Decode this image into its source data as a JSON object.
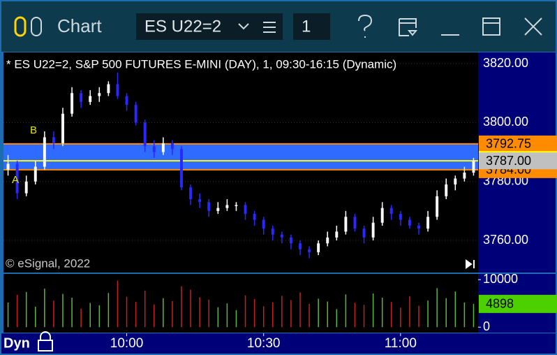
{
  "window": {
    "title": "Chart",
    "symbol": "ES U22=2",
    "interval": "1",
    "footer": "Dyn"
  },
  "chart_data": {
    "type": "candlestick",
    "title": "* ES U22=2, S&P 500 FUTURES E-MINI (DAY), 1, 09:30-16:15 (Dynamic)",
    "copyright": "© eSignal, 2022",
    "annotations": [
      "A",
      "B"
    ],
    "x": [
      574,
      576,
      578,
      580,
      582,
      584,
      586,
      588,
      590,
      592,
      594,
      596,
      598,
      600,
      602,
      604,
      606,
      608,
      610,
      612,
      614,
      616,
      618,
      620,
      622,
      624,
      626,
      628,
      630,
      632,
      634,
      636,
      638,
      640,
      642,
      644,
      646,
      648,
      650,
      652,
      654,
      656,
      658,
      660,
      662,
      664,
      666,
      668,
      670,
      672,
      674,
      676
    ],
    "open": [
      3784,
      3786,
      3776,
      3780,
      3785,
      3795,
      3793,
      3803,
      3810,
      3807,
      3809,
      3810,
      3813,
      3809,
      3806,
      3800,
      3792,
      3790,
      3793,
      3791,
      3778,
      3774,
      3773,
      3770,
      3771,
      3772,
      3772,
      3769,
      3767,
      3764,
      3762,
      3761,
      3759,
      3757,
      3756,
      3759,
      3761,
      3763,
      3768,
      3764,
      3761,
      3766,
      3771,
      3769,
      3767,
      3765,
      3764,
      3768,
      3775,
      3779,
      3781,
      3783
    ],
    "high": [
      3789,
      3787,
      3782,
      3787,
      3797,
      3797,
      3805,
      3812,
      3811,
      3811,
      3812,
      3814,
      3817,
      3810,
      3807,
      3801,
      3794,
      3795,
      3794,
      3792,
      3779,
      3776,
      3774,
      3773,
      3774,
      3773,
      3773,
      3770,
      3768,
      3765,
      3763,
      3762,
      3760,
      3758,
      3760,
      3763,
      3765,
      3770,
      3769,
      3765,
      3768,
      3773,
      3772,
      3770,
      3768,
      3766,
      3770,
      3777,
      3781,
      3782,
      3785,
      3788
    ],
    "low": [
      3782,
      3774,
      3775,
      3779,
      3784,
      3791,
      3792,
      3802,
      3805,
      3806,
      3807,
      3809,
      3808,
      3804,
      3799,
      3790,
      3788,
      3789,
      3789,
      3777,
      3772,
      3771,
      3768,
      3769,
      3770,
      3770,
      3767,
      3765,
      3762,
      3760,
      3759,
      3757,
      3755,
      3754,
      3755,
      3758,
      3760,
      3762,
      3763,
      3759,
      3760,
      3765,
      3767,
      3765,
      3764,
      3762,
      3763,
      3767,
      3774,
      3777,
      3780,
      3782
    ],
    "close": [
      3786,
      3776,
      3780,
      3785,
      3795,
      3793,
      3803,
      3810,
      3807,
      3809,
      3810,
      3813,
      3809,
      3806,
      3800,
      3792,
      3790,
      3793,
      3791,
      3778,
      3774,
      3773,
      3770,
      3771,
      3772,
      3772,
      3769,
      3767,
      3764,
      3762,
      3761,
      3759,
      3757,
      3756,
      3759,
      3761,
      3763,
      3768,
      3764,
      3761,
      3766,
      3771,
      3769,
      3767,
      3765,
      3764,
      3768,
      3775,
      3779,
      3781,
      3783,
      3787
    ],
    "up_color": "#ffffff",
    "down_color": "#2828ff",
    "xlim": [
      573,
      677
    ],
    "xticks": [
      {
        "value": 600,
        "label": "10:00"
      },
      {
        "value": 630,
        "label": "10:30"
      },
      {
        "value": 660,
        "label": "11:00"
      }
    ],
    "ylim": [
      3749.1,
      3823.8
    ],
    "yticks": [
      {
        "value": 3820,
        "label": "3820.00"
      },
      {
        "value": 3800,
        "label": "3800.00"
      },
      {
        "value": 3780,
        "label": "3780.00"
      },
      {
        "value": 3760,
        "label": "3760.00"
      }
    ],
    "grid": true,
    "band": {
      "color": "#2f6bff",
      "levels": [
        {
          "value": 3792.75,
          "label": "3792.75"
        },
        {
          "value": 3784,
          "label": "3784.00"
        }
      ],
      "level_color": "#ff8c00"
    },
    "last": {
      "value": 3787,
      "label": "3787.00",
      "color": "#ffff00"
    },
    "volume": {
      "values": [
        5200,
        6800,
        7400,
        4300,
        8100,
        5600,
        7000,
        6200,
        3900,
        5100,
        4600,
        7200,
        9800,
        6400,
        5300,
        7700,
        4800,
        6100,
        5500,
        8600,
        7900,
        6300,
        5800,
        4200,
        5000,
        3600,
        6700,
        5900,
        4400,
        5200,
        6600,
        5700,
        7300,
        4900,
        6000,
        5400,
        3800,
        6900,
        5100,
        4700,
        7100,
        6200,
        5300,
        4100,
        6500,
        4500,
        5600,
        8200,
        6100,
        7500,
        5200,
        4898
      ],
      "ylim": [
        -1000,
        11200
      ],
      "yticks": [
        10000,
        0
      ],
      "up_color": "#5cb838",
      "down_color": "#c42222",
      "last_color": "#4cd000"
    }
  }
}
